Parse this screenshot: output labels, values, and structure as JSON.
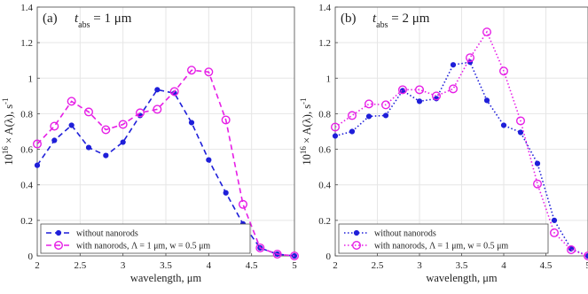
{
  "chart_data": [
    {
      "type": "line",
      "panel_label": "(a)",
      "title_var": "t",
      "title_sub": "abs",
      "title_rest": " = 1 μm",
      "xlabel": "wavelength,  μm",
      "ylabel": "10",
      "ylabel_sup": "16",
      "ylabel_rest": " × A(λ), s",
      "ylabel_unit_sup": "-1",
      "xlim": [
        2,
        5
      ],
      "ylim": [
        0,
        1.4
      ],
      "xticks": [
        "2",
        "2.5",
        "3",
        "3.5",
        "4",
        "4.5",
        "5"
      ],
      "yticks": [
        "0",
        "0.2",
        "0.4",
        "0.6",
        "0.8",
        "1",
        "1.2",
        "1.4"
      ],
      "grid": true,
      "legend_position": "bottom-left",
      "series": [
        {
          "name": "without nanorods",
          "color": "#1f1fd9",
          "line_style": "dashed",
          "marker": "filled-circle",
          "x": [
            2.0,
            2.2,
            2.4,
            2.6,
            2.8,
            3.0,
            3.2,
            3.4,
            3.6,
            3.8,
            4.0,
            4.2,
            4.4,
            4.6,
            4.8,
            5.0
          ],
          "y": [
            0.51,
            0.65,
            0.735,
            0.61,
            0.565,
            0.64,
            0.79,
            0.935,
            0.915,
            0.75,
            0.54,
            0.355,
            0.18,
            0.045,
            0.01,
            0.0
          ]
        },
        {
          "name": "with nanorods, Λ = 1 μm, w = 0.5 μm",
          "color": "#e61ee6",
          "line_style": "dashed",
          "marker": "open-circle",
          "x": [
            2.0,
            2.2,
            2.4,
            2.6,
            2.8,
            3.0,
            3.2,
            3.4,
            3.6,
            3.8,
            4.0,
            4.2,
            4.4,
            4.6,
            4.8,
            5.0
          ],
          "y": [
            0.63,
            0.73,
            0.87,
            0.81,
            0.71,
            0.74,
            0.805,
            0.825,
            0.925,
            1.045,
            1.035,
            0.765,
            0.29,
            0.045,
            0.01,
            0.0
          ]
        }
      ]
    },
    {
      "type": "line",
      "panel_label": "(b)",
      "title_var": "t",
      "title_sub": "abs",
      "title_rest": " = 2 μm",
      "xlabel": "wavelength,  μm",
      "ylabel": "10",
      "ylabel_sup": "16",
      "ylabel_rest": " × A(λ), s",
      "ylabel_unit_sup": "-1",
      "xlim": [
        2,
        5
      ],
      "ylim": [
        0,
        1.4
      ],
      "xticks": [
        "2",
        "2.5",
        "3",
        "3.5",
        "4",
        "4.5",
        "5"
      ],
      "yticks": [
        "0",
        "0.2",
        "0.4",
        "0.6",
        "0.8",
        "1",
        "1.2",
        "1.4"
      ],
      "grid": true,
      "legend_position": "bottom-left",
      "series": [
        {
          "name": "without nanorods",
          "color": "#1f1fd9",
          "line_style": "dotted",
          "marker": "filled-circle",
          "x": [
            2.0,
            2.2,
            2.4,
            2.6,
            2.8,
            3.0,
            3.2,
            3.4,
            3.6,
            3.8,
            4.0,
            4.2,
            4.4,
            4.6,
            4.8,
            5.0
          ],
          "y": [
            0.675,
            0.7,
            0.785,
            0.79,
            0.93,
            0.87,
            0.885,
            1.075,
            1.09,
            0.875,
            0.735,
            0.695,
            0.52,
            0.2,
            0.04,
            0.0
          ]
        },
        {
          "name": "with nanorods, Λ = 1 μm, w = 0.5 μm",
          "color": "#e61ee6",
          "line_style": "dotted",
          "marker": "open-circle",
          "x": [
            2.0,
            2.2,
            2.4,
            2.6,
            2.8,
            3.0,
            3.2,
            3.4,
            3.6,
            3.8,
            4.0,
            4.2,
            4.4,
            4.6,
            4.8,
            5.0
          ],
          "y": [
            0.725,
            0.79,
            0.855,
            0.85,
            0.935,
            0.935,
            0.9,
            0.94,
            1.115,
            1.26,
            1.04,
            0.76,
            0.405,
            0.13,
            0.035,
            0.0
          ]
        }
      ]
    }
  ]
}
